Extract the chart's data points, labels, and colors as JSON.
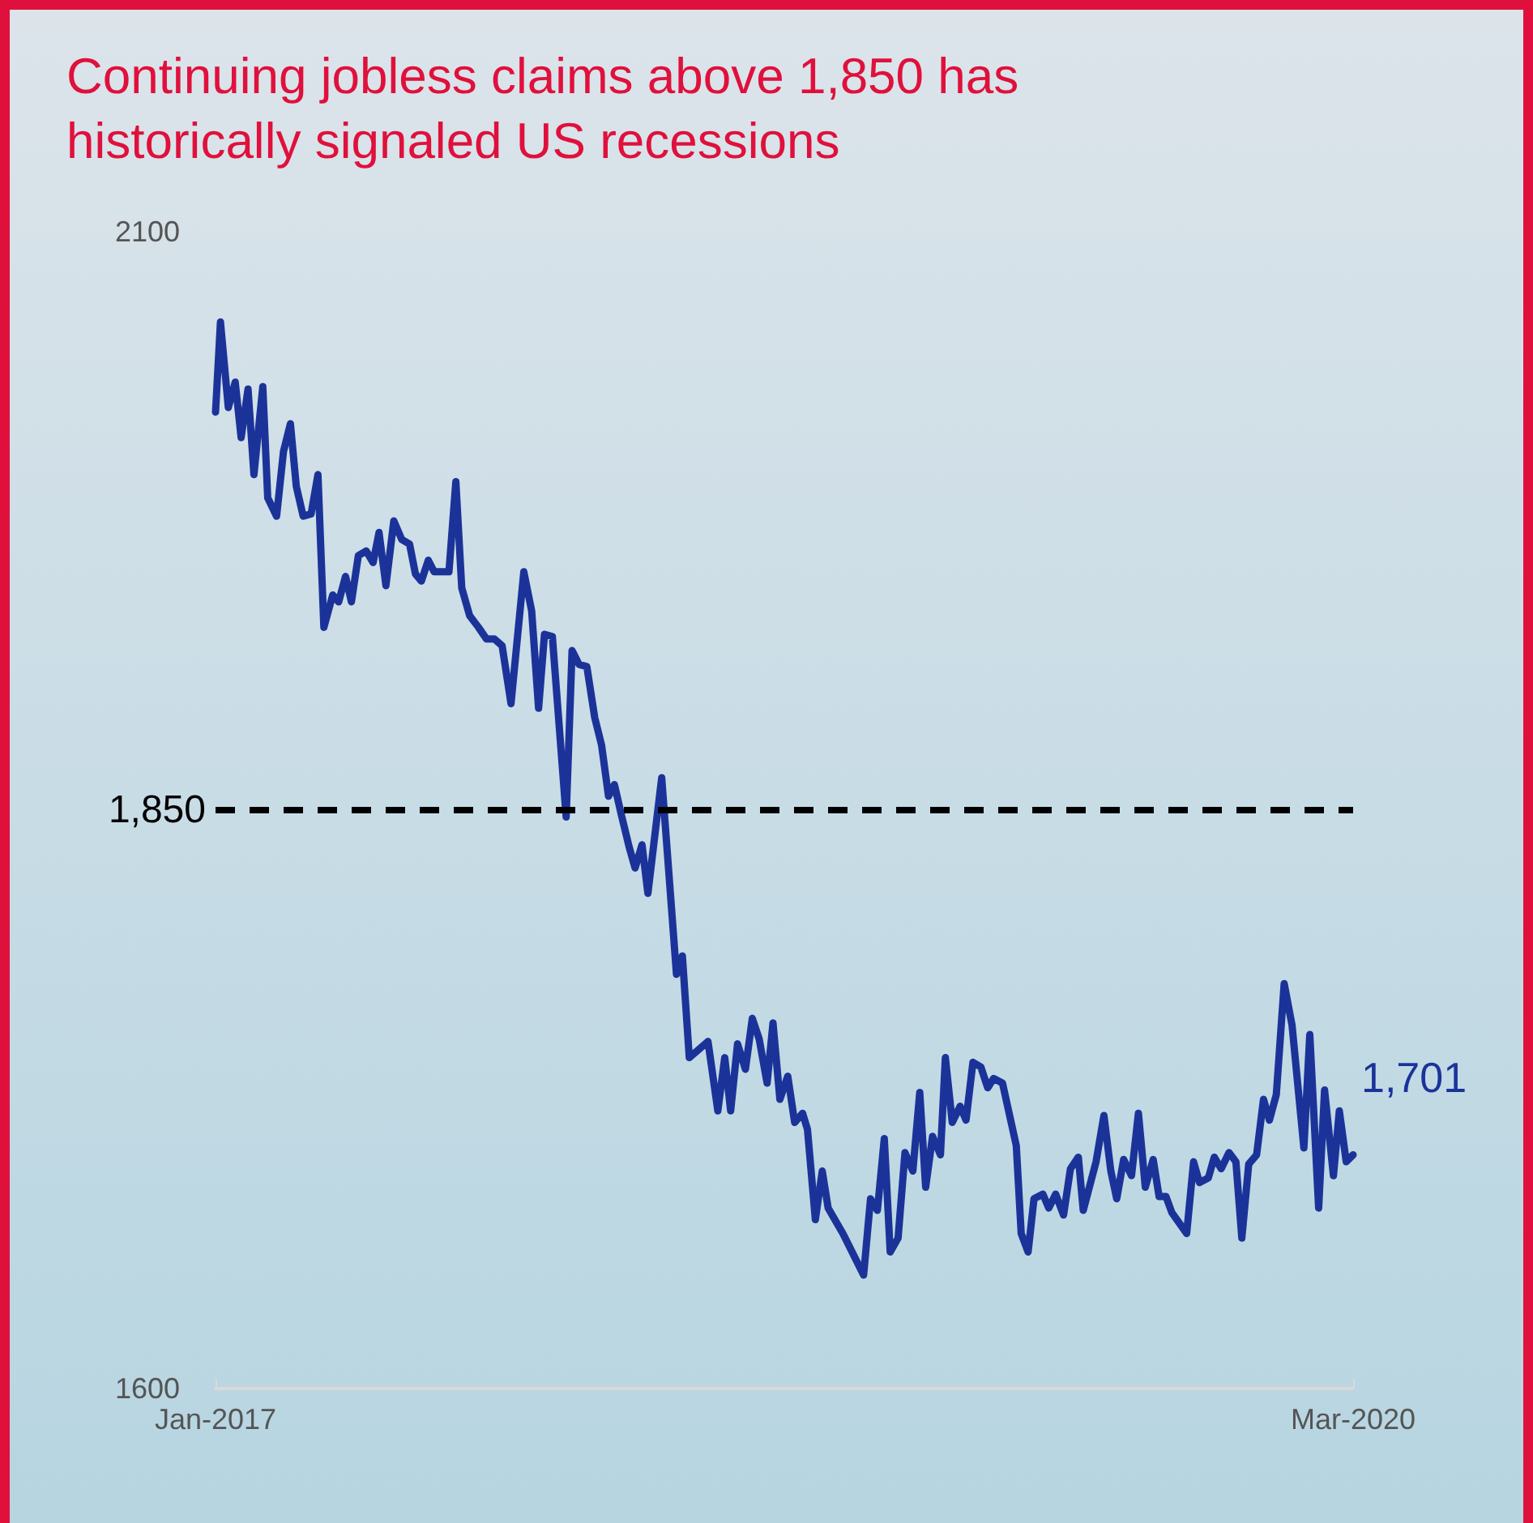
{
  "chart_data": {
    "type": "line",
    "title": "Continuing jobless claims above 1,850 has historically signaled US recessions",
    "xlim": [
      "2017-01-01",
      "2020-03-01"
    ],
    "xticks": [
      {
        "value": "2017-01",
        "label": "Jan-2017"
      },
      {
        "value": "2020-03",
        "label": "Mar-2020"
      }
    ],
    "ylim": [
      1600,
      2100
    ],
    "yticks": [
      1600,
      2100
    ],
    "ref_lines": [
      {
        "axis": "y",
        "value": 1850,
        "label": "1,850",
        "color": "#000000",
        "line_style": "dashed"
      }
    ],
    "annotations": [
      {
        "text": "1,701",
        "x": "2020-03-01",
        "y": 1701
      }
    ],
    "series": [
      {
        "color": "#1b3399",
        "x": [
          "2017-01-01",
          "2017-01-06",
          "2017-01-14",
          "2017-01-21",
          "2017-01-27",
          "2017-02-03",
          "2017-02-09",
          "2017-02-18",
          "2017-02-23",
          "2017-03-04",
          "2017-03-11",
          "2017-03-18",
          "2017-03-24",
          "2017-03-31",
          "2017-04-08",
          "2017-04-15",
          "2017-04-21",
          "2017-04-30",
          "2017-05-06",
          "2017-05-13",
          "2017-05-19",
          "2017-05-26",
          "2017-06-03",
          "2017-06-10",
          "2017-06-16",
          "2017-06-23",
          "2017-07-01",
          "2017-07-09",
          "2017-07-17",
          "2017-07-23",
          "2017-07-29",
          "2017-08-05",
          "2017-08-11",
          "2017-08-26",
          "2017-09-02",
          "2017-09-08",
          "2017-09-16",
          "2017-09-25",
          "2017-10-03",
          "2017-10-11",
          "2017-10-19",
          "2017-10-28",
          "2017-11-10",
          "2017-11-18",
          "2017-11-25",
          "2017-12-01",
          "2017-12-09",
          "2017-12-23",
          "2017-12-29",
          "2018-01-05",
          "2018-01-13",
          "2018-01-21",
          "2018-01-28",
          "2018-02-04",
          "2018-02-10",
          "2018-02-17",
          "2018-02-25",
          "2018-03-03",
          "2018-03-10",
          "2018-03-16",
          "2018-03-30",
          "2018-04-14",
          "2018-04-20",
          "2018-04-27",
          "2018-05-16",
          "2018-05-26",
          "2018-06-02",
          "2018-06-08",
          "2018-06-15",
          "2018-06-23",
          "2018-06-30",
          "2018-07-07",
          "2018-07-15",
          "2018-07-21",
          "2018-07-28",
          "2018-08-05",
          "2018-08-12",
          "2018-08-20",
          "2018-08-25",
          "2018-09-02",
          "2018-09-09",
          "2018-09-15",
          "2018-09-30",
          "2018-10-21",
          "2018-10-28",
          "2018-11-04",
          "2018-11-11",
          "2018-11-17",
          "2018-11-25",
          "2018-12-02",
          "2018-12-10",
          "2018-12-17",
          "2018-12-23",
          "2018-12-30",
          "2019-01-07",
          "2019-01-12",
          "2019-01-19",
          "2019-01-27",
          "2019-02-02",
          "2019-02-09",
          "2019-02-17",
          "2019-02-24",
          "2019-03-02",
          "2019-03-11",
          "2019-03-25",
          "2019-03-30",
          "2019-04-06",
          "2019-04-12",
          "2019-04-21",
          "2019-04-27",
          "2019-05-04",
          "2019-05-12",
          "2019-05-19",
          "2019-05-27",
          "2019-06-01",
          "2019-06-14",
          "2019-06-22",
          "2019-06-29",
          "2019-07-05",
          "2019-07-12",
          "2019-07-20",
          "2019-07-27",
          "2019-08-03",
          "2019-08-11",
          "2019-08-17",
          "2019-08-24",
          "2019-08-30",
          "2019-09-14",
          "2019-09-21",
          "2019-09-27",
          "2019-10-06",
          "2019-10-12",
          "2019-10-19",
          "2019-10-27",
          "2019-11-03",
          "2019-11-09",
          "2019-11-16",
          "2019-11-24",
          "2019-12-01",
          "2019-12-07",
          "2019-12-14",
          "2019-12-22",
          "2019-12-30",
          "2020-01-11",
          "2020-01-17",
          "2020-01-26",
          "2020-02-01",
          "2020-02-10",
          "2020-02-16",
          "2020-02-23",
          "2020-03-01"
        ],
        "values": [
          2022,
          2061,
          2024,
          2035,
          2011,
          2032,
          1995,
          2033,
          1985,
          1977,
          2005,
          2017,
          1990,
          1977,
          1978,
          1995,
          1929,
          1943,
          1940,
          1951,
          1940,
          1960,
          1962,
          1957,
          1970,
          1947,
          1975,
          1967,
          1965,
          1952,
          1949,
          1958,
          1953,
          1953,
          1992,
          1946,
          1934,
          1929,
          1924,
          1924,
          1921,
          1896,
          1953,
          1936,
          1894,
          1926,
          1925,
          1847,
          1919,
          1913,
          1912,
          1890,
          1878,
          1856,
          1861,
          1848,
          1834,
          1825,
          1835,
          1814,
          1864,
          1779,
          1787,
          1743,
          1750,
          1720,
          1743,
          1720,
          1749,
          1738,
          1760,
          1751,
          1732,
          1758,
          1725,
          1735,
          1715,
          1719,
          1712,
          1673,
          1694,
          1678,
          1667,
          1649,
          1682,
          1677,
          1708,
          1659,
          1665,
          1702,
          1694,
          1728,
          1687,
          1709,
          1701,
          1743,
          1715,
          1722,
          1716,
          1741,
          1739,
          1730,
          1734,
          1732,
          1705,
          1667,
          1659,
          1682,
          1684,
          1678,
          1684,
          1675,
          1695,
          1700,
          1677,
          1698,
          1718,
          1694,
          1682,
          1699,
          1692,
          1719,
          1687,
          1699,
          1683,
          1683,
          1676,
          1667,
          1698,
          1689,
          1691,
          1700,
          1695,
          1702,
          1698,
          1665,
          1697,
          1701,
          1725,
          1716,
          1727,
          1775,
          1757,
          1704,
          1753,
          1678,
          1729,
          1692,
          1720,
          1698,
          1701
        ]
      }
    ]
  }
}
